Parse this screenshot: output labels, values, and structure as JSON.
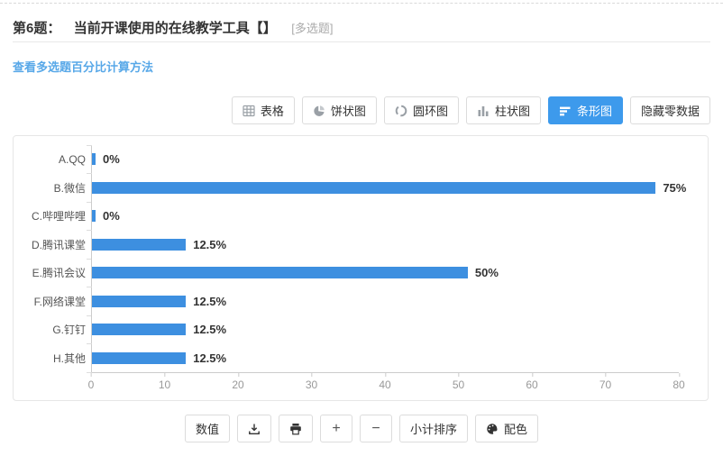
{
  "header": {
    "question_no": "第6题：",
    "question_title": "当前开课使用的在线教学工具【】",
    "question_type": "[多选题]",
    "link_text": "查看多选题百分比计算方法"
  },
  "chart_toolbar": {
    "buttons": [
      {
        "label": "表格",
        "icon": "table-icon",
        "active": false
      },
      {
        "label": "饼状图",
        "icon": "pie-chart-icon",
        "active": false
      },
      {
        "label": "圆环图",
        "icon": "donut-chart-icon",
        "active": false
      },
      {
        "label": "柱状图",
        "icon": "column-chart-icon",
        "active": false
      },
      {
        "label": "条形图",
        "icon": "bar-chart-icon",
        "active": true
      },
      {
        "label": "隐藏零数据",
        "icon": null,
        "active": false
      }
    ]
  },
  "chart_data": {
    "type": "bar",
    "orientation": "horizontal",
    "title": "",
    "categories": [
      "A.QQ",
      "B.微信",
      "C.哔哩哔哩",
      "D.腾讯课堂",
      "E.腾讯会议",
      "F.网络课堂",
      "G.钉钉",
      "H.其他"
    ],
    "values": [
      0,
      75,
      0,
      12.5,
      50,
      12.5,
      12.5,
      12.5
    ],
    "value_labels": [
      "0%",
      "75%",
      "0%",
      "12.5%",
      "50%",
      "12.5%",
      "12.5%",
      "12.5%"
    ],
    "xlim": [
      0,
      80
    ],
    "x_ticks": [
      0,
      10,
      20,
      30,
      40,
      50,
      60,
      70,
      80
    ],
    "grid": false,
    "legend": false,
    "bar_color": "#3d8fe0"
  },
  "bottom_toolbar": {
    "value_label": "数值",
    "download_icon": "download-icon",
    "print_icon": "print-icon",
    "zoom_in_label": "+",
    "zoom_out_label": "−",
    "subtotal_sort_label": "小计排序",
    "palette_label": "配色"
  },
  "colors": {
    "accent_blue": "#3d9aec",
    "bar_blue": "#3d8fe0",
    "link_blue": "#58a8e8",
    "border_gray": "#dcdcdc"
  }
}
